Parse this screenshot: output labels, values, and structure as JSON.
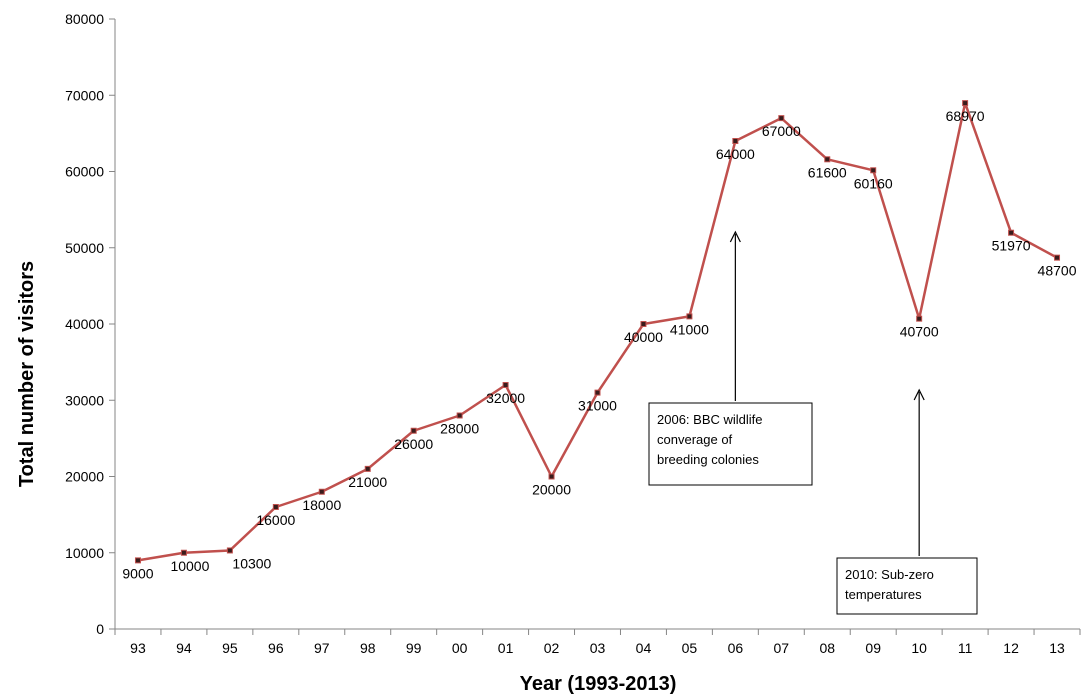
{
  "chart_data": {
    "type": "line",
    "title": "",
    "xlabel": "Year (1993-2013)",
    "ylabel": "Total number of visitors",
    "categories": [
      "93",
      "94",
      "95",
      "96",
      "97",
      "98",
      "99",
      "00",
      "01",
      "02",
      "03",
      "04",
      "05",
      "06",
      "07",
      "08",
      "09",
      "10",
      "11",
      "12",
      "13"
    ],
    "series": [
      {
        "values": [
          9000,
          10000,
          10300,
          16000,
          18000,
          21000,
          26000,
          28000,
          32000,
          20000,
          31000,
          40000,
          41000,
          64000,
          67000,
          61600,
          60160,
          40700,
          68970,
          51970,
          48700
        ],
        "labels": [
          "9000",
          "10000",
          "10300",
          "16000",
          "18000",
          "21000",
          "26000",
          "28000",
          "32000",
          "20000",
          "31000",
          "40000",
          "41000",
          "64000",
          "67000",
          "61600",
          "60160",
          "40700",
          "68970",
          "51970",
          "48700"
        ],
        "color": "#c0504d"
      }
    ],
    "ylim": [
      0,
      80000
    ],
    "yticks": [
      "0",
      "10000",
      "20000",
      "30000",
      "40000",
      "50000",
      "60000",
      "70000",
      "80000"
    ],
    "grid": false,
    "legend": "none",
    "annotations": [
      {
        "category": "06",
        "lines": [
          "2006: BBC wildlife",
          "converage of",
          "breeding colonies"
        ]
      },
      {
        "category": "10",
        "lines": [
          "2010: Sub-zero",
          "temperatures"
        ]
      }
    ]
  }
}
